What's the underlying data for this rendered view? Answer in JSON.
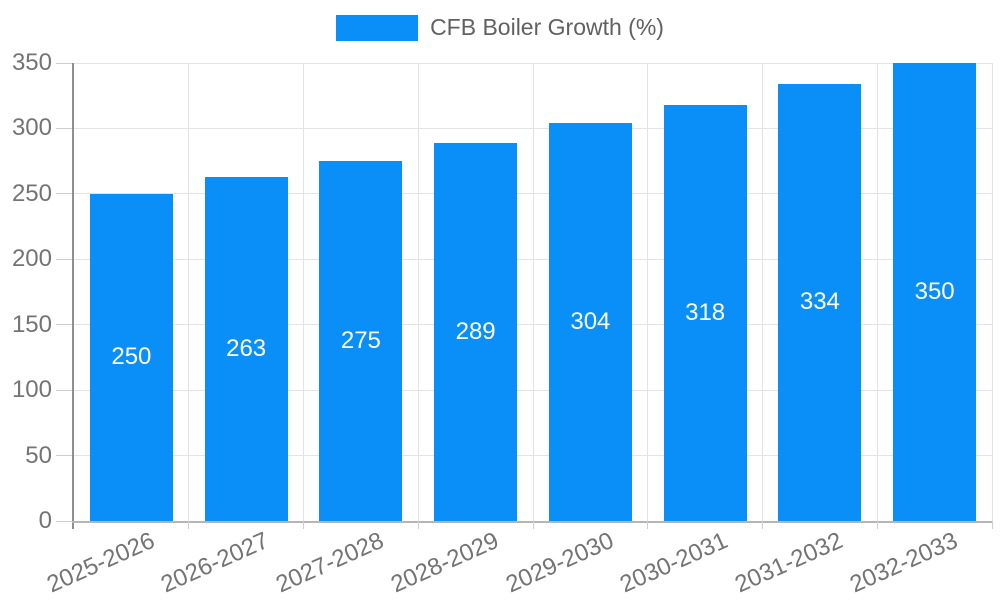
{
  "chart_data": {
    "type": "bar",
    "legend": "CFB Boiler Growth (%)",
    "categories": [
      "2025-2026",
      "2026-2027",
      "2027-2028",
      "2028-2029",
      "2029-2030",
      "2030-2031",
      "2031-2032",
      "2032-2033"
    ],
    "values": [
      250,
      263,
      275,
      289,
      304,
      318,
      334,
      350
    ],
    "yticks": [
      0,
      50,
      100,
      150,
      200,
      250,
      300,
      350
    ],
    "ylim": [
      0,
      350
    ],
    "xlabel": "",
    "ylabel": "",
    "grid": true,
    "legend_position": "top-center",
    "x_label_rotation": -24,
    "colors": {
      "bar": "#0a8ef8",
      "bar_value_text": "#ffffff",
      "axis_text": "#747474",
      "legend_text": "#616161",
      "gridline": "#e3e3e3",
      "y_axis_line": "#8f8f8f",
      "x_axis_line": "#b5b5b5"
    }
  }
}
